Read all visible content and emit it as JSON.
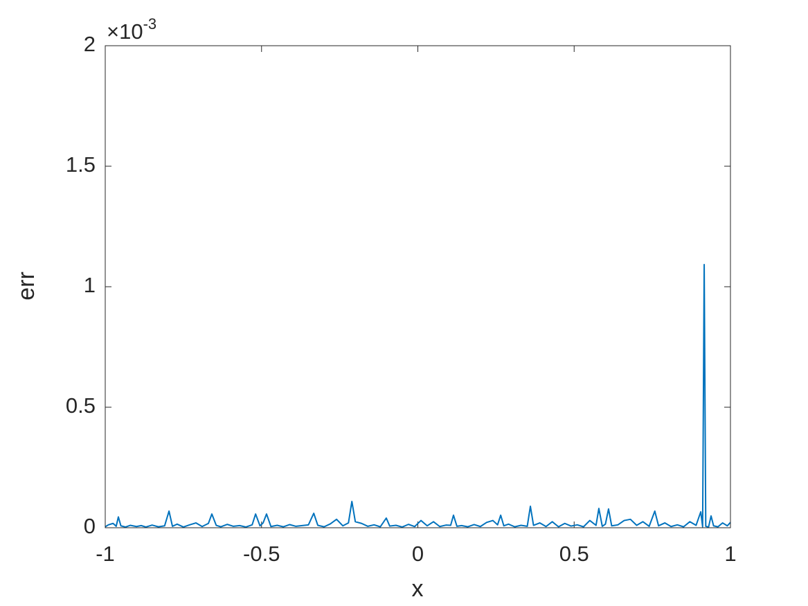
{
  "chart_data": {
    "type": "line",
    "x_label": "x",
    "y_label": "err",
    "y_multiplier": {
      "base": "×10",
      "exponent": "-3"
    },
    "xlim": [
      -1,
      1
    ],
    "xticks": [
      -1,
      -0.5,
      0,
      0.5,
      1
    ],
    "ylim": [
      0,
      2
    ],
    "yticks": [
      0,
      0.5,
      1,
      1.5,
      2
    ],
    "grid": false,
    "box": true,
    "series": [
      {
        "color": "#0072BD",
        "x": [
          -1,
          -0.99,
          -0.975,
          -0.965,
          -0.958,
          -0.95,
          -0.935,
          -0.92,
          -0.9,
          -0.885,
          -0.87,
          -0.85,
          -0.83,
          -0.81,
          -0.796,
          -0.785,
          -0.77,
          -0.75,
          -0.73,
          -0.71,
          -0.69,
          -0.67,
          -0.659,
          -0.645,
          -0.63,
          -0.61,
          -0.59,
          -0.57,
          -0.55,
          -0.53,
          -0.519,
          -0.505,
          -0.495,
          -0.484,
          -0.47,
          -0.45,
          -0.43,
          -0.41,
          -0.39,
          -0.37,
          -0.35,
          -0.333,
          -0.32,
          -0.3,
          -0.28,
          -0.26,
          -0.24,
          -0.222,
          -0.211,
          -0.2,
          -0.18,
          -0.16,
          -0.14,
          -0.12,
          -0.101,
          -0.09,
          -0.07,
          -0.05,
          -0.03,
          -0.01,
          0.01,
          0.03,
          0.05,
          0.07,
          0.09,
          0.105,
          0.114,
          0.125,
          0.14,
          0.16,
          0.18,
          0.2,
          0.22,
          0.24,
          0.255,
          0.265,
          0.275,
          0.29,
          0.31,
          0.33,
          0.35,
          0.36,
          0.37,
          0.39,
          0.41,
          0.43,
          0.45,
          0.47,
          0.49,
          0.51,
          0.53,
          0.55,
          0.57,
          0.579,
          0.59,
          0.6,
          0.61,
          0.62,
          0.64,
          0.66,
          0.68,
          0.7,
          0.72,
          0.74,
          0.758,
          0.77,
          0.79,
          0.81,
          0.83,
          0.85,
          0.87,
          0.89,
          0.905,
          0.911,
          0.916,
          0.921,
          0.93,
          0.938,
          0.946,
          0.96,
          0.975,
          0.99,
          1
        ],
        "values": [
          0.004,
          0.012,
          0.018,
          0.006,
          0.045,
          0.008,
          0.003,
          0.01,
          0.005,
          0.009,
          0.003,
          0.011,
          0.004,
          0.008,
          0.069,
          0.006,
          0.015,
          0.003,
          0.012,
          0.02,
          0.005,
          0.018,
          0.057,
          0.01,
          0.004,
          0.014,
          0.006,
          0.009,
          0.003,
          0.012,
          0.057,
          0.008,
          0.02,
          0.057,
          0.005,
          0.01,
          0.004,
          0.013,
          0.006,
          0.009,
          0.012,
          0.06,
          0.01,
          0.004,
          0.016,
          0.035,
          0.008,
          0.02,
          0.109,
          0.025,
          0.018,
          0.006,
          0.012,
          0.004,
          0.04,
          0.007,
          0.01,
          0.003,
          0.014,
          0.005,
          0.03,
          0.008,
          0.025,
          0.005,
          0.011,
          0.01,
          0.052,
          0.006,
          0.009,
          0.004,
          0.013,
          0.005,
          0.022,
          0.03,
          0.012,
          0.052,
          0.008,
          0.015,
          0.004,
          0.01,
          0.006,
          0.089,
          0.01,
          0.02,
          0.005,
          0.025,
          0.004,
          0.018,
          0.007,
          0.012,
          0.004,
          0.03,
          0.01,
          0.08,
          0.006,
          0.015,
          0.078,
          0.008,
          0.012,
          0.03,
          0.035,
          0.01,
          0.025,
          0.006,
          0.069,
          0.008,
          0.02,
          0.005,
          0.012,
          0.004,
          0.025,
          0.01,
          0.066,
          0.004,
          1.092,
          0.006,
          0.003,
          0.049,
          0.008,
          0.004,
          0.02,
          0.008,
          0.022
        ]
      }
    ]
  }
}
